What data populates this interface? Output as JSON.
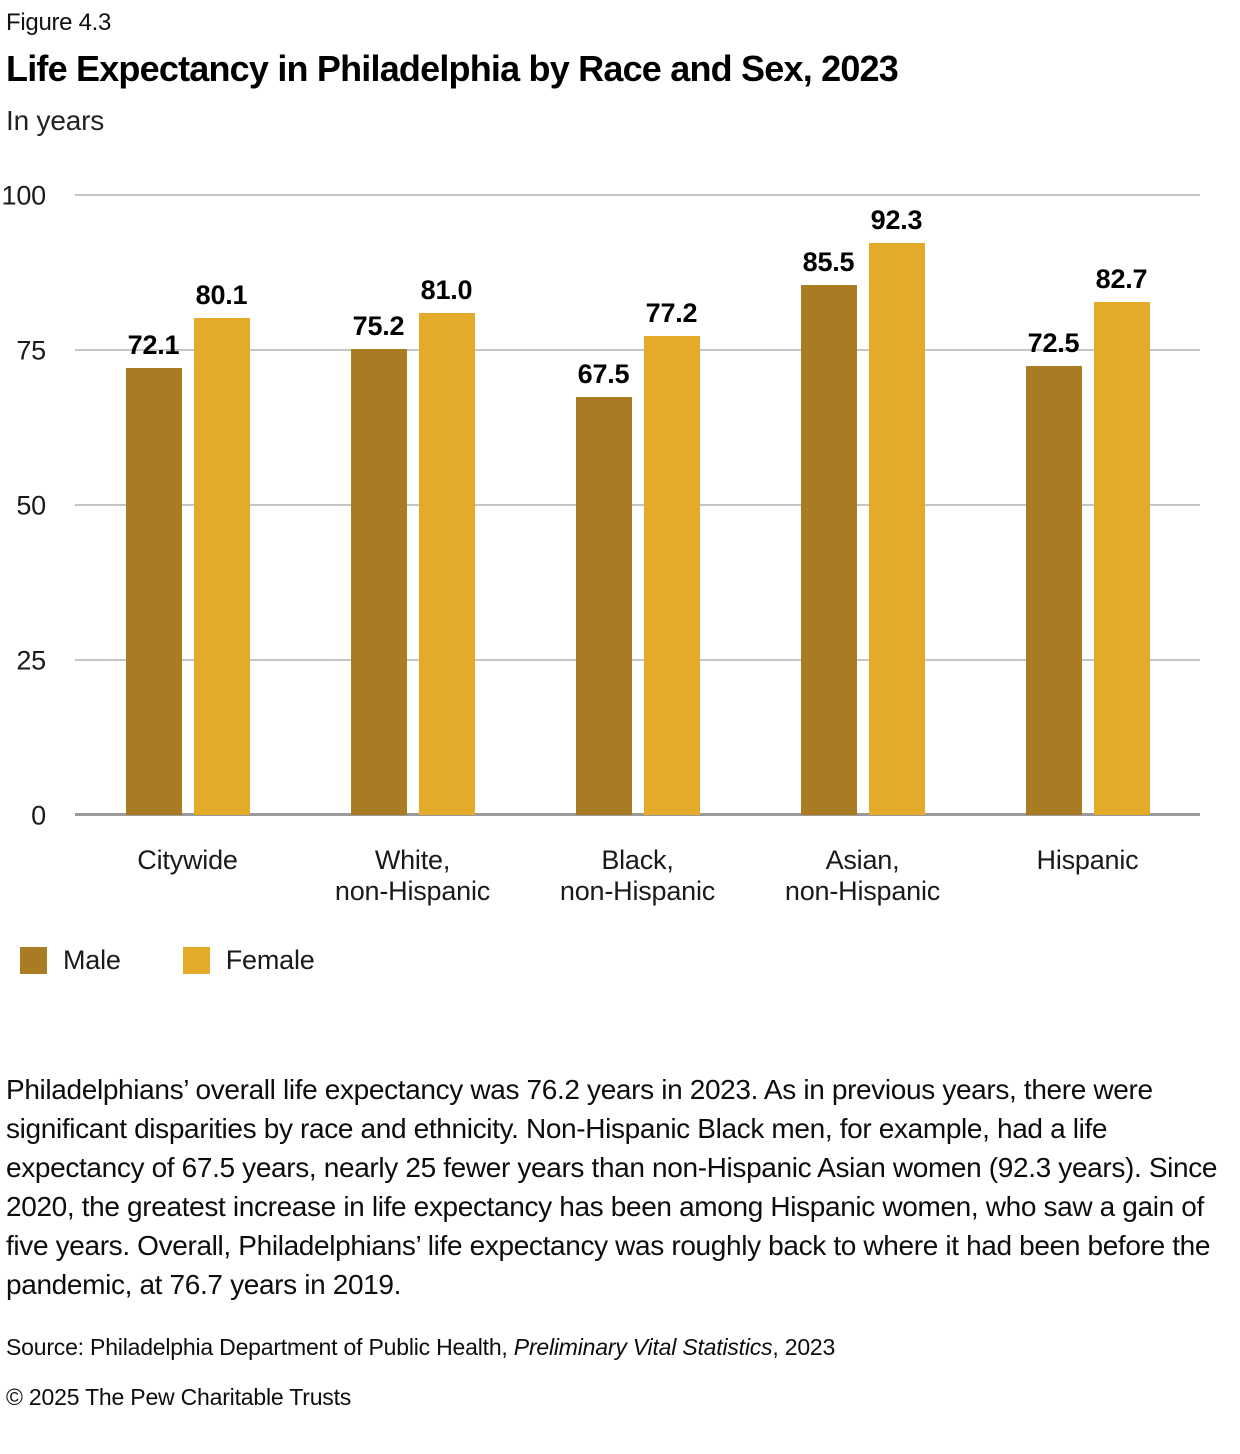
{
  "figure": {
    "label": "Figure 4.3"
  },
  "chart_data": {
    "type": "bar",
    "title": "Life Expectancy in Philadelphia by Race and Sex, 2023",
    "subtitle": "In years",
    "categories": [
      "Citywide",
      "White,\nnon-Hispanic",
      "Black,\nnon-Hispanic",
      "Asian,\nnon-Hispanic",
      "Hispanic"
    ],
    "series": [
      {
        "name": "Male",
        "color": "#A97C24",
        "values": [
          72.1,
          75.2,
          67.5,
          85.5,
          72.5
        ]
      },
      {
        "name": "Female",
        "color": "#E3AB29",
        "values": [
          80.1,
          81.0,
          77.2,
          92.3,
          82.7
        ]
      }
    ],
    "xlabel": "",
    "ylabel": "In years",
    "ylim": [
      0,
      100
    ],
    "yticks": [
      0,
      25,
      50,
      75,
      100
    ],
    "grid": true,
    "value_labels": true,
    "legend_position": "bottom-left"
  },
  "legend": {
    "items": [
      {
        "label": "Male",
        "color": "#A97C24"
      },
      {
        "label": "Female",
        "color": "#E3AB29"
      }
    ]
  },
  "body": {
    "paragraph": "Philadelphians’ overall life expectancy was 76.2 years in 2023. As in previous years, there were significant disparities by race and ethnicity. Non-Hispanic Black men, for example, had a life expectancy of 67.5 years, nearly 25 fewer years than non-Hispanic Asian women (92.3 years). Since 2020, the greatest increase in life expectancy has been among Hispanic women, who saw a gain of five years. Overall, Philadelphians’ life expectancy was roughly back to where it had been before the pandemic, at 76.7 years in 2019."
  },
  "footer": {
    "source_prefix": "Source: Philadelphia Department of Public Health, ",
    "source_italic": "Preliminary Vital Statistics",
    "source_suffix": ", 2023",
    "copyright": "© 2025 The Pew Charitable Trusts"
  },
  "colors": {
    "male": "#A97C24",
    "female": "#E3AB29",
    "gridline": "#c6c6c6",
    "baseline": "#9a9a9a",
    "text": "#1a1a1a"
  }
}
